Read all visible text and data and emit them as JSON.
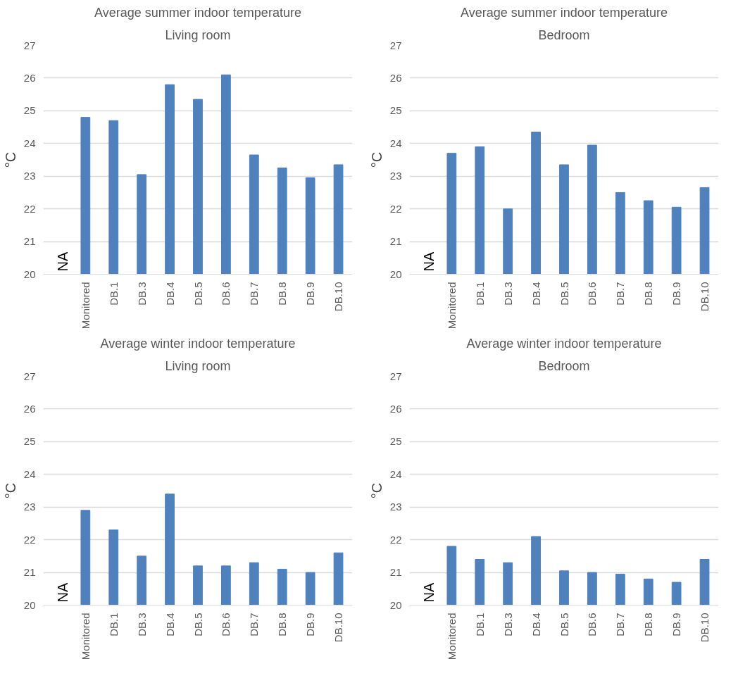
{
  "chart_data": [
    {
      "type": "bar",
      "title": "Average summer indoor temperature",
      "subtitle": "Living room",
      "ylabel": "°C",
      "categories": [
        null,
        "Monitored",
        "DB.1",
        "DB.3",
        "DB.4",
        "DB.5",
        "DB.6",
        "DB.7",
        "DB.8",
        "DB.9",
        "DB.10"
      ],
      "series": [
        {
          "color": "#4f81bd",
          "values": [
            null,
            24.8,
            24.7,
            23.05,
            25.8,
            25.35,
            26.1,
            23.65,
            23.25,
            22.95,
            23.35
          ]
        }
      ],
      "ylim": [
        20,
        27
      ],
      "yticks": [
        20,
        21,
        22,
        23,
        24,
        25,
        26,
        27
      ],
      "grid": "y",
      "annotations": [
        "NA"
      ]
    },
    {
      "type": "bar",
      "title": "Average summer indoor temperature",
      "subtitle": "Bedroom",
      "ylabel": "°C",
      "categories": [
        null,
        "Monitored",
        "DB.1",
        "DB.3",
        "DB.4",
        "DB.5",
        "DB.6",
        "DB.7",
        "DB.8",
        "DB.9",
        "DB.10"
      ],
      "series": [
        {
          "color": "#4f81bd",
          "values": [
            null,
            23.7,
            23.9,
            22.0,
            24.35,
            23.35,
            23.95,
            22.5,
            22.25,
            22.05,
            22.65
          ]
        }
      ],
      "ylim": [
        20,
        27
      ],
      "yticks": [
        20,
        21,
        22,
        23,
        24,
        25,
        26,
        27
      ],
      "grid": "y",
      "annotations": [
        "NA"
      ]
    },
    {
      "type": "bar",
      "title": "Average winter indoor temperature",
      "subtitle": "Living room",
      "ylabel": "°C",
      "categories": [
        null,
        "Monitored",
        "DB.1",
        "DB.3",
        "DB.4",
        "DB.5",
        "DB.6",
        "DB.7",
        "DB.8",
        "DB.9",
        "DB.10"
      ],
      "series": [
        {
          "color": "#4f81bd",
          "values": [
            null,
            22.9,
            22.3,
            21.5,
            23.4,
            21.2,
            21.2,
            21.3,
            21.1,
            21.0,
            21.6
          ]
        }
      ],
      "ylim": [
        20,
        27
      ],
      "yticks": [
        20,
        21,
        22,
        23,
        24,
        25,
        26,
        27
      ],
      "grid": "y",
      "annotations": [
        "NA"
      ]
    },
    {
      "type": "bar",
      "title": "Average winter indoor temperature",
      "subtitle": "Bedroom",
      "ylabel": "°C",
      "categories": [
        null,
        "Monitored",
        "DB.1",
        "DB.3",
        "DB.4",
        "DB.5",
        "DB.6",
        "DB.7",
        "DB.8",
        "DB.9",
        "DB.10"
      ],
      "series": [
        {
          "color": "#4f81bd",
          "values": [
            null,
            21.8,
            21.4,
            21.3,
            22.1,
            21.05,
            21.0,
            20.95,
            20.8,
            20.7,
            21.4
          ]
        }
      ],
      "ylim": [
        20,
        27
      ],
      "yticks": [
        20,
        21,
        22,
        23,
        24,
        25,
        26,
        27
      ],
      "grid": "y",
      "annotations": [
        "NA"
      ]
    }
  ]
}
